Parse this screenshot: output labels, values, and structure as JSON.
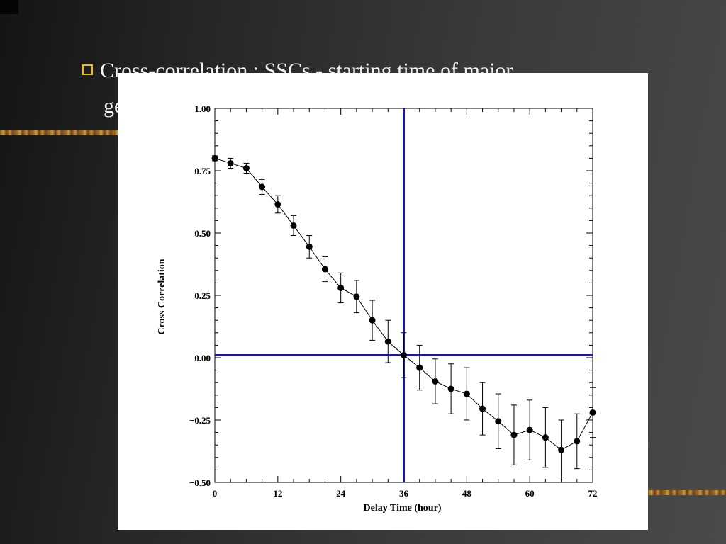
{
  "slide": {
    "bullet_text": "Cross-correlation : SSCs - starting time of major",
    "continuation_text": "ge"
  },
  "colors": {
    "background": "#2e2e2e",
    "bullet": "#f0c000",
    "reference_lines": "#1a1aaa",
    "data": "#000000"
  },
  "chart_data": {
    "type": "line",
    "xlabel": "Delay Time (hour)",
    "ylabel": "Cross Correlation",
    "xlim": [
      0,
      72
    ],
    "ylim": [
      -0.5,
      1.0
    ],
    "xticks": [
      0,
      12,
      24,
      36,
      48,
      60,
      72
    ],
    "xtick_labels": [
      "0",
      "12",
      "24",
      "36",
      "48",
      "60",
      "72"
    ],
    "yticks": [
      1.0,
      0.75,
      0.5,
      0.25,
      0.0,
      -0.25,
      -0.5
    ],
    "ytick_labels": [
      "1.00",
      "0.75",
      "0.50",
      "0.25",
      "0.00",
      "−0.25",
      "−0.50"
    ],
    "grid": false,
    "reference_lines": {
      "vertical_x": 36,
      "horizontal_y": 0.01
    },
    "series": [
      {
        "x": [
          0,
          3,
          6,
          9,
          12,
          15,
          18,
          21,
          24,
          27,
          30,
          33,
          36,
          39,
          42,
          45,
          48,
          51,
          54,
          57,
          60,
          63,
          66,
          69,
          72
        ],
        "y": [
          0.8,
          0.78,
          0.76,
          0.685,
          0.615,
          0.53,
          0.445,
          0.355,
          0.28,
          0.245,
          0.15,
          0.065,
          0.01,
          -0.04,
          -0.095,
          -0.125,
          -0.145,
          -0.205,
          -0.255,
          -0.31,
          -0.29,
          -0.32,
          -0.37,
          -0.335,
          -0.22
        ],
        "err": [
          0.01,
          0.02,
          0.02,
          0.03,
          0.035,
          0.04,
          0.045,
          0.05,
          0.06,
          0.065,
          0.08,
          0.085,
          0.09,
          0.09,
          0.09,
          0.1,
          0.105,
          0.105,
          0.11,
          0.12,
          0.12,
          0.12,
          0.12,
          0.11,
          0.1
        ]
      }
    ]
  }
}
